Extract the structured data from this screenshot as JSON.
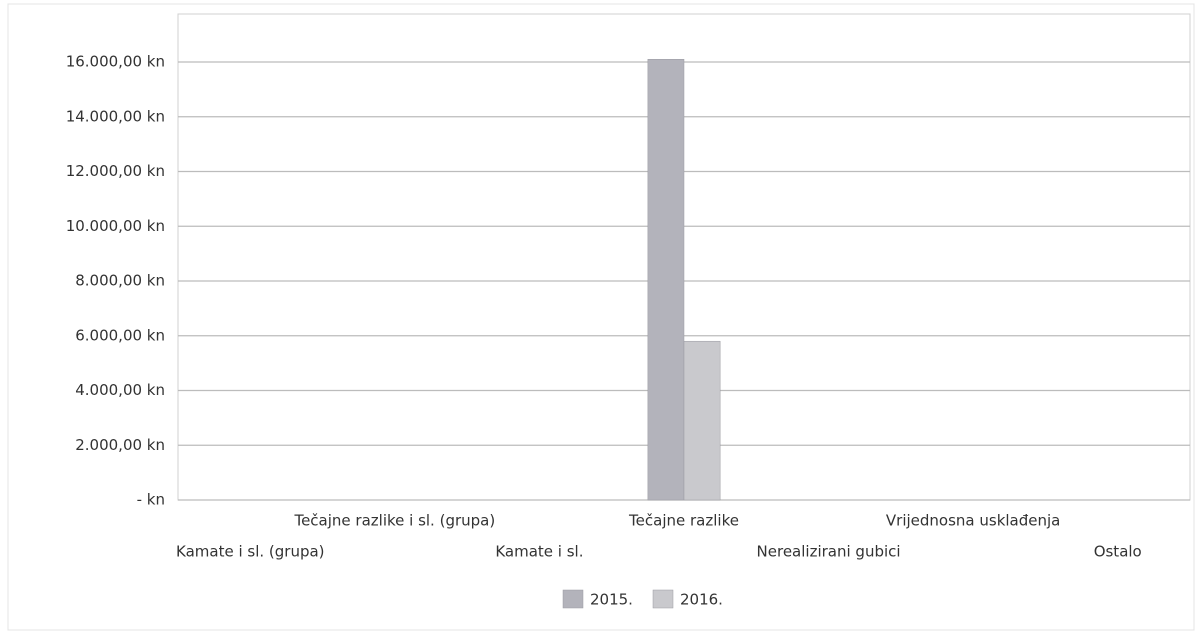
{
  "chart_data": {
    "type": "bar",
    "categories": [
      "Kamate i sl. (grupa)",
      "Tečajne razlike i sl. (grupa)",
      "Kamate i sl.",
      "Tečajne razlike",
      "Nerealizirani gubici",
      "Vrijednosna usklađenja",
      "Ostalo"
    ],
    "series": [
      {
        "name": "2015.",
        "color": "#b3b3bb",
        "values": [
          0,
          0,
          0,
          16100,
          0,
          0,
          0
        ]
      },
      {
        "name": "2016.",
        "color": "#c9c9cd",
        "values": [
          0,
          0,
          0,
          5800,
          0,
          0,
          0
        ]
      }
    ],
    "ylim": [
      0,
      16000
    ],
    "yticks": [
      {
        "value": 0,
        "label": "-   kn"
      },
      {
        "value": 2000,
        "label": "2.000,00 kn"
      },
      {
        "value": 4000,
        "label": "4.000,00 kn"
      },
      {
        "value": 6000,
        "label": "6.000,00 kn"
      },
      {
        "value": 8000,
        "label": "8.000,00 kn"
      },
      {
        "value": 10000,
        "label": "10.000,00 kn"
      },
      {
        "value": 12000,
        "label": "12.000,00 kn"
      },
      {
        "value": 14000,
        "label": "14.000,00 kn"
      },
      {
        "value": 16000,
        "label": "16.000,00 kn"
      }
    ],
    "grid": true,
    "legend": "bottom"
  }
}
